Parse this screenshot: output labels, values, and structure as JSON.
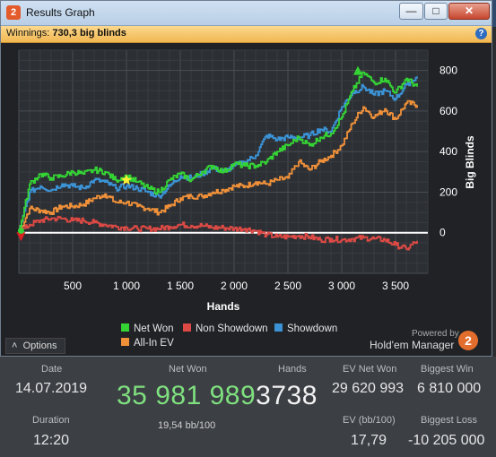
{
  "window": {
    "title": "Results Graph",
    "app_icon": "2"
  },
  "winnings_bar": {
    "label": "Winnings:",
    "value": "730,3 big blinds"
  },
  "colors": {
    "net_won": "#35d435",
    "non_showdown": "#dd4a45",
    "showdown": "#3b93d6",
    "all_in_ev": "#f0913a",
    "zero_line": "#ffffff"
  },
  "chart_data": {
    "type": "line",
    "xlabel": "Hands",
    "ylabel": "Big Blinds",
    "xlim": [
      0,
      3800
    ],
    "ylim": [
      -200,
      900
    ],
    "x_ticks": [
      "500",
      "1 000",
      "1 500",
      "2 000",
      "2 500",
      "3 000",
      "3 500"
    ],
    "y_ticks": [
      "0",
      "200",
      "400",
      "600",
      "800"
    ],
    "grid": true,
    "legend_position": "bottom",
    "series": [
      {
        "name": "Net Won",
        "color": "#35d435",
        "x": [
          0,
          100,
          200,
          300,
          400,
          500,
          600,
          700,
          800,
          900,
          1000,
          1100,
          1200,
          1300,
          1400,
          1500,
          1600,
          1700,
          1800,
          1900,
          2000,
          2100,
          2200,
          2300,
          2400,
          2500,
          2600,
          2700,
          2800,
          2900,
          3000,
          3100,
          3200,
          3300,
          3400,
          3500,
          3600,
          3700
        ],
        "y": [
          0,
          240,
          290,
          270,
          280,
          300,
          290,
          310,
          300,
          260,
          280,
          250,
          220,
          200,
          260,
          290,
          260,
          300,
          330,
          300,
          340,
          330,
          330,
          350,
          400,
          430,
          470,
          430,
          470,
          490,
          570,
          700,
          790,
          740,
          760,
          690,
          760,
          720
        ]
      },
      {
        "name": "Non Showdown",
        "color": "#dd4a45",
        "x": [
          0,
          100,
          200,
          300,
          400,
          500,
          600,
          700,
          800,
          900,
          1000,
          1100,
          1200,
          1300,
          1400,
          1500,
          1600,
          1700,
          1800,
          1900,
          2000,
          2100,
          2200,
          2300,
          2400,
          2500,
          2600,
          2700,
          2800,
          2900,
          3000,
          3100,
          3200,
          3300,
          3400,
          3500,
          3600,
          3700
        ],
        "y": [
          0,
          40,
          60,
          70,
          70,
          60,
          60,
          50,
          40,
          30,
          25,
          20,
          20,
          20,
          30,
          40,
          35,
          35,
          25,
          25,
          20,
          20,
          10,
          -10,
          -20,
          -20,
          -15,
          -20,
          -35,
          -30,
          -35,
          -30,
          -25,
          -30,
          -35,
          -60,
          -80,
          -40
        ]
      },
      {
        "name": "Showdown",
        "color": "#3b93d6",
        "x": [
          0,
          100,
          200,
          300,
          400,
          500,
          600,
          700,
          800,
          900,
          1000,
          1100,
          1200,
          1300,
          1400,
          1500,
          1600,
          1700,
          1800,
          1900,
          2000,
          2100,
          2200,
          2300,
          2400,
          2500,
          2600,
          2700,
          2800,
          2900,
          3000,
          3100,
          3200,
          3300,
          3400,
          3500,
          3600,
          3700
        ],
        "y": [
          0,
          200,
          230,
          210,
          240,
          230,
          220,
          260,
          250,
          220,
          230,
          220,
          200,
          180,
          230,
          280,
          270,
          290,
          320,
          300,
          330,
          350,
          380,
          480,
          460,
          470,
          470,
          480,
          510,
          500,
          620,
          690,
          720,
          680,
          700,
          660,
          730,
          770
        ]
      },
      {
        "name": "All-In EV",
        "color": "#f0913a",
        "x": [
          0,
          100,
          200,
          300,
          400,
          500,
          600,
          700,
          800,
          900,
          1000,
          1100,
          1200,
          1300,
          1400,
          1500,
          1600,
          1700,
          1800,
          1900,
          2000,
          2100,
          2200,
          2300,
          2400,
          2500,
          2600,
          2700,
          2800,
          2900,
          3000,
          3100,
          3200,
          3300,
          3400,
          3500,
          3600,
          3700
        ],
        "y": [
          0,
          120,
          110,
          100,
          130,
          130,
          140,
          170,
          190,
          150,
          150,
          130,
          120,
          100,
          130,
          170,
          180,
          180,
          200,
          210,
          230,
          230,
          250,
          240,
          260,
          270,
          350,
          310,
          350,
          380,
          430,
          540,
          620,
          570,
          610,
          560,
          640,
          630
        ]
      }
    ],
    "markers": [
      {
        "type": "star",
        "color": "#ffee33",
        "x": 1000,
        "y": 260
      },
      {
        "type": "triangle-up",
        "color": "#35d435",
        "x": 3150,
        "y": 800
      },
      {
        "type": "triangle-down",
        "color": "#dd2020",
        "x": 20,
        "y": -20
      },
      {
        "type": "dot",
        "color": "#35d435",
        "x": 20,
        "y": 10
      }
    ]
  },
  "legend": [
    {
      "label": "Net Won",
      "color": "#35d435"
    },
    {
      "label": "Non Showdown",
      "color": "#dd4a45"
    },
    {
      "label": "Showdown",
      "color": "#3b93d6"
    },
    {
      "label": "All-In EV",
      "color": "#f0913a"
    }
  ],
  "footer": {
    "options_label": "Options",
    "powered_by": "Powered by",
    "brand": "Hold'em Manager",
    "brand_icon": "2"
  },
  "stats": {
    "date_label": "Date",
    "date_value": "14.07.2019",
    "duration_label": "Duration",
    "duration_value": "12:20",
    "net_won_label": "Net Won",
    "net_won_green": "35 981 989",
    "net_won_white": "3738",
    "bb_per_100": "19,54 bb/100",
    "hands_label": "Hands",
    "ev_net_won_label": "EV Net Won",
    "ev_net_won_value": "29 620 993",
    "ev_bb_label": "EV (bb/100)",
    "ev_bb_value": "17,79",
    "biggest_win_label": "Biggest Win",
    "biggest_win_value": "6 810 000",
    "biggest_loss_label": "Biggest Loss",
    "biggest_loss_value": "-10 205 000"
  }
}
